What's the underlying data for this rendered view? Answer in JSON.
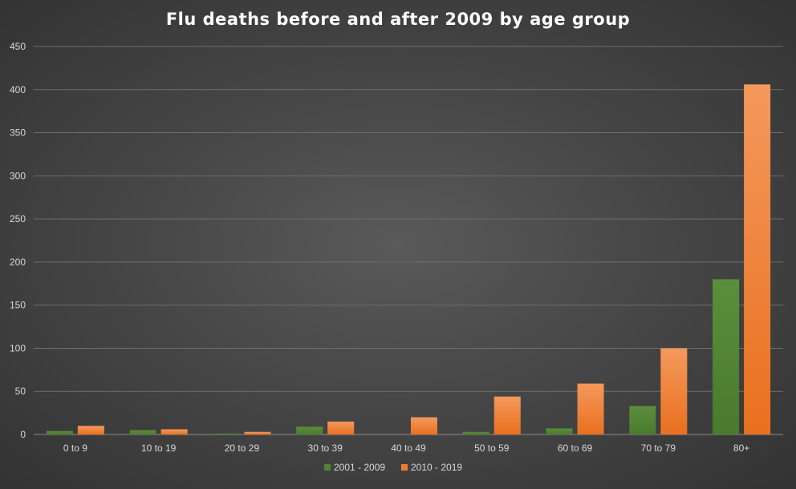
{
  "chart_data": {
    "type": "bar",
    "title": "Flu deaths before and after 2009 by age group",
    "xlabel": "",
    "ylabel": "",
    "categories": [
      "0 to 9",
      "10 to 19",
      "20 to 29",
      "30 to 39",
      "40 to 49",
      "50 to 59",
      "60 to 69",
      "70 to 79",
      "80+"
    ],
    "series": [
      {
        "name": "2001 - 2009",
        "color": "#548235",
        "values": [
          4,
          5,
          1,
          9,
          0,
          3,
          7,
          33,
          180
        ]
      },
      {
        "name": "2010 - 2019",
        "color": "#ED7D31",
        "values": [
          10,
          6,
          3,
          15,
          20,
          44,
          59,
          100,
          406
        ]
      }
    ],
    "ylim": [
      0,
      450
    ],
    "yticks": [
      0,
      50,
      100,
      150,
      200,
      250,
      300,
      350,
      400,
      450
    ],
    "grid": true,
    "legend_position": "bottom"
  }
}
